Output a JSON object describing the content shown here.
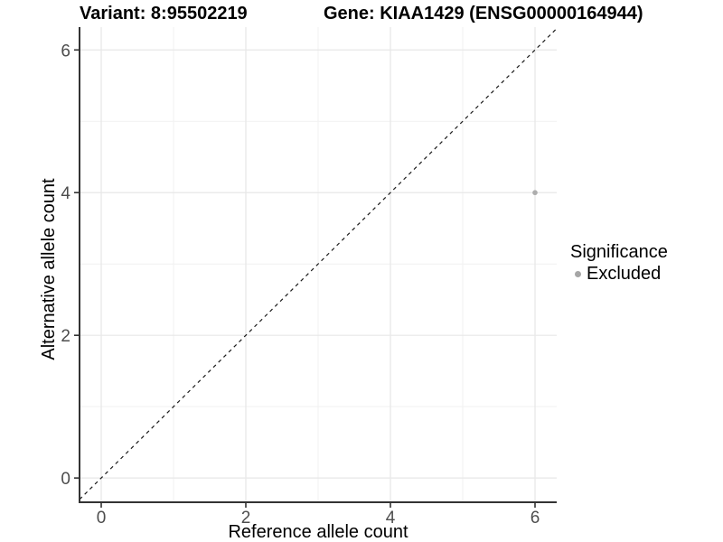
{
  "chart_data": {
    "type": "scatter",
    "title_variant": "Variant: 8:95502219",
    "title_gene": "Gene: KIAA1429 (ENSG00000164944)",
    "xlabel": "Reference allele count",
    "ylabel": "Alternative allele count",
    "x_ticks": [
      0,
      2,
      4,
      6
    ],
    "y_ticks": [
      0,
      2,
      4,
      6
    ],
    "x_minor_ticks": [
      1,
      3,
      5
    ],
    "y_minor_ticks": [
      1,
      3,
      5
    ],
    "xlim": [
      -0.3,
      6.3
    ],
    "ylim": [
      -0.34,
      6.32
    ],
    "grid": true,
    "legend_position": "right",
    "points": [
      {
        "x": 6,
        "y": 4,
        "significance": "Excluded"
      }
    ],
    "reference_line": {
      "type": "identity",
      "slope": 1,
      "intercept": 0,
      "style": "dashed"
    },
    "legend": {
      "title": "Significance",
      "items": [
        {
          "label": "Excluded",
          "color": "#a6a6a6"
        }
      ]
    },
    "colors": {
      "point": "#adadad",
      "grid_major": "#e7e7e7",
      "grid_minor": "#f1f1f1",
      "axis_line": "#333333",
      "tick_mark": "#333333",
      "tick_label": "#4d4d4d",
      "reference_line": "#1a1a1a",
      "background": "#ffffff"
    }
  }
}
